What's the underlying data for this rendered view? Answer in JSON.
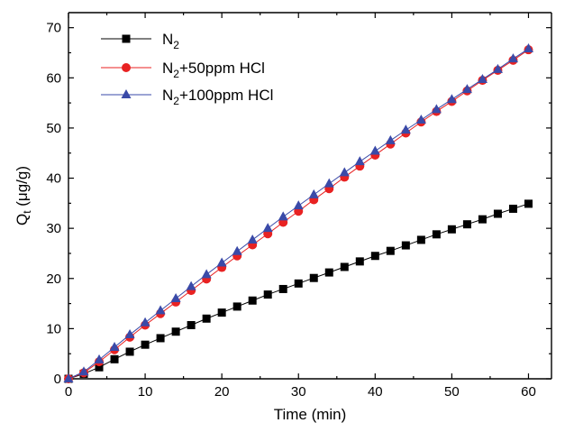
{
  "chart_data": {
    "type": "line",
    "xlabel": "Time (min)",
    "ylabel": {
      "main": "Q",
      "sub": "t",
      "unit": " (μg/g)"
    },
    "xlim": [
      0,
      63
    ],
    "ylim": [
      0,
      73
    ],
    "xticks": [
      0,
      10,
      20,
      30,
      40,
      50,
      60
    ],
    "yticks": [
      0,
      10,
      20,
      30,
      40,
      50,
      60,
      70
    ],
    "xtick_labels": [
      "0",
      "10",
      "20",
      "30",
      "40",
      "50",
      "60"
    ],
    "ytick_labels": [
      "0",
      "10",
      "20",
      "30",
      "40",
      "50",
      "60",
      "70"
    ],
    "legend_position": "top-left",
    "x": [
      0,
      2,
      4,
      6,
      8,
      10,
      12,
      14,
      16,
      18,
      20,
      22,
      24,
      26,
      28,
      30,
      32,
      34,
      36,
      38,
      40,
      42,
      44,
      46,
      48,
      50,
      52,
      54,
      56,
      58,
      60
    ],
    "series": [
      {
        "label_main": "N",
        "label_sub": "2",
        "label_rest": "",
        "color": "#000000",
        "marker": "square",
        "values": [
          0,
          1.0,
          2.3,
          3.9,
          5.4,
          6.8,
          8.1,
          9.4,
          10.7,
          12.0,
          13.2,
          14.4,
          15.6,
          16.8,
          17.9,
          19.0,
          20.1,
          21.2,
          22.3,
          23.4,
          24.5,
          25.5,
          26.6,
          27.7,
          28.8,
          29.8,
          30.8,
          31.8,
          32.9,
          33.9,
          34.9
        ]
      },
      {
        "label_main": "N",
        "label_sub": "2",
        "label_rest": "+50ppm HCl",
        "color": "#e82222",
        "marker": "circle",
        "values": [
          0,
          1.2,
          3.4,
          5.8,
          8.3,
          10.7,
          13.0,
          15.3,
          17.6,
          19.9,
          22.2,
          24.5,
          26.7,
          28.9,
          31.2,
          33.4,
          35.7,
          37.9,
          40.2,
          42.4,
          44.6,
          46.8,
          49.0,
          51.2,
          53.3,
          55.3,
          57.4,
          59.5,
          61.5,
          63.5,
          65.6
        ]
      },
      {
        "label_main": "N",
        "label_sub": "2",
        "label_rest": "+100ppm HCl",
        "color": "#3a4aa8",
        "marker": "triangle",
        "values": [
          0,
          1.4,
          3.8,
          6.3,
          8.8,
          11.2,
          13.6,
          16.0,
          18.4,
          20.8,
          23.1,
          25.4,
          27.7,
          30.0,
          32.3,
          34.5,
          36.7,
          38.9,
          41.1,
          43.3,
          45.4,
          47.5,
          49.6,
          51.6,
          53.7,
          55.7,
          57.7,
          59.7,
          61.7,
          63.8,
          65.8
        ]
      }
    ]
  }
}
